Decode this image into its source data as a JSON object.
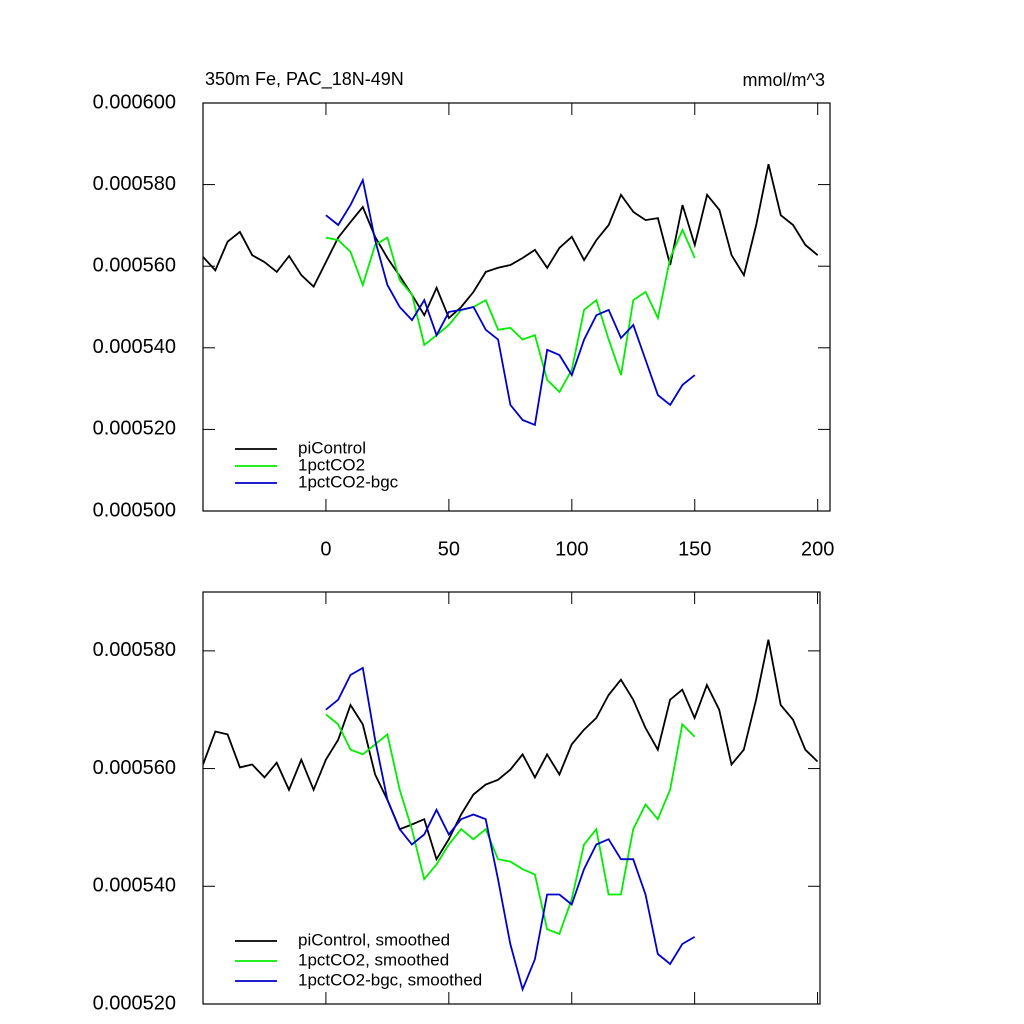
{
  "chart_data": [
    {
      "type": "line",
      "title": "350m Fe, PAC_18N-49N",
      "subtitle": "mmol/m^3",
      "x": [
        -50,
        -45,
        -40,
        -35,
        -30,
        -25,
        -20,
        -15,
        -10,
        -5,
        0,
        5,
        10,
        15,
        20,
        25,
        30,
        35,
        40,
        45,
        50,
        55,
        60,
        65,
        70,
        75,
        80,
        85,
        90,
        95,
        100,
        105,
        110,
        115,
        120,
        125,
        130,
        135,
        140,
        145,
        150,
        155,
        160,
        165,
        170,
        175,
        180,
        185,
        190,
        195,
        200
      ],
      "series": [
        {
          "name": "piControl",
          "color": "#000000",
          "values": [
            0.0005623,
            0.000559,
            0.000566,
            0.0005684,
            0.0005627,
            0.000561,
            0.0005586,
            0.0005625,
            0.0005578,
            0.000555,
            0.000561,
            0.000567,
            0.0005708,
            0.0005745,
            0.0005672,
            0.000562,
            0.0005576,
            0.000553,
            0.000548,
            0.0005547,
            0.0005473,
            0.00055,
            0.0005537,
            0.0005586,
            0.0005596,
            0.0005603,
            0.000562,
            0.000564,
            0.0005596,
            0.0005645,
            0.0005672,
            0.0005615,
            0.0005664,
            0.0005701,
            0.0005775,
            0.0005733,
            0.0005713,
            0.0005718,
            0.0005603,
            0.000575,
            0.0005652,
            0.0005775,
            0.0005738,
            0.0005627,
            0.0005578,
            0.0005701,
            0.000585,
            0.0005725,
            0.0005701,
            0.0005652,
            0.0005627
          ]
        },
        {
          "name": "1pctCO2",
          "color": "#00ee00",
          "values": [
            null,
            null,
            null,
            null,
            null,
            null,
            null,
            null,
            null,
            null,
            0.000567,
            0.0005664,
            0.0005635,
            0.0005554,
            0.0005652,
            0.000567,
            0.0005566,
            0.000553,
            0.0005407,
            0.0005431,
            0.0005456,
            0.0005493,
            0.00055,
            0.0005517,
            0.0005444,
            0.0005449,
            0.000542,
            0.0005431,
            0.0005321,
            0.0005292,
            0.0005346,
            0.0005493,
            0.0005517,
            0.000542,
            0.0005333,
            0.0005517,
            0.0005537,
            0.0005473,
            0.000562,
            0.0005689,
            0.000562,
            null,
            null,
            null,
            null,
            null,
            null,
            null,
            null,
            null,
            null
          ]
        },
        {
          "name": "1pctCO2-bgc",
          "color": "#0000cc",
          "values": [
            null,
            null,
            null,
            null,
            null,
            null,
            null,
            null,
            null,
            null,
            0.0005725,
            0.0005701,
            0.000575,
            0.0005811,
            0.0005664,
            0.0005554,
            0.00055,
            0.0005468,
            0.0005517,
            0.0005431,
            0.0005488,
            0.0005493,
            0.00055,
            0.0005444,
            0.000542,
            0.000526,
            0.0005223,
            0.0005211,
            0.0005395,
            0.0005382,
            0.0005333,
            0.000542,
            0.000548,
            0.0005493,
            0.0005424,
            0.0005456,
            0.000537,
            0.0005284,
            0.000526,
            0.0005309,
            0.0005333,
            null,
            null,
            null,
            null,
            null,
            null,
            null,
            null,
            null,
            null
          ]
        }
      ],
      "xlim": [
        -50,
        205
      ],
      "xticks": [
        0,
        50,
        100,
        150,
        200
      ],
      "ylim": [
        0.0005,
        0.0006
      ],
      "yticks": [
        {
          "value": 0.0005,
          "label": "0.000500"
        },
        {
          "value": 0.00052,
          "label": "0.000520"
        },
        {
          "value": 0.00054,
          "label": "0.000540"
        },
        {
          "value": 0.00056,
          "label": "0.000560"
        },
        {
          "value": 0.00058,
          "label": "0.000580"
        },
        {
          "value": 0.0006,
          "label": "0.000600"
        }
      ],
      "legend": "bottom-left",
      "xtick_labels": true
    },
    {
      "type": "line",
      "x": [
        -50,
        -45,
        -40,
        -35,
        -30,
        -25,
        -20,
        -15,
        -10,
        -5,
        0,
        5,
        10,
        15,
        20,
        25,
        30,
        35,
        40,
        45,
        50,
        55,
        60,
        65,
        70,
        75,
        80,
        85,
        90,
        95,
        100,
        105,
        110,
        115,
        120,
        125,
        130,
        135,
        140,
        145,
        150,
        155,
        160,
        165,
        170,
        175,
        180,
        185,
        190,
        195,
        200
      ],
      "series": [
        {
          "name": "piControl, smoothed",
          "color": "#000000",
          "values": [
            0.0005607,
            0.0005663,
            0.0005658,
            0.0005602,
            0.0005607,
            0.0005585,
            0.000561,
            0.0005564,
            0.0005615,
            0.0005564,
            0.0005615,
            0.0005649,
            0.0005708,
            0.0005675,
            0.000559,
            0.0005547,
            0.0005497,
            0.0005505,
            0.0005514,
            0.0005446,
            0.000548,
            0.0005522,
            0.0005556,
            0.0005573,
            0.0005581,
            0.0005598,
            0.0005624,
            0.0005585,
            0.0005624,
            0.000559,
            0.0005641,
            0.0005666,
            0.0005686,
            0.0005725,
            0.0005751,
            0.0005717,
            0.0005669,
            0.0005632,
            0.0005717,
            0.0005734,
            0.0005686,
            0.0005742,
            0.00057,
            0.0005607,
            0.0005632,
            0.0005717,
            0.0005819,
            0.0005708,
            0.0005683,
            0.0005632,
            0.0005612
          ]
        },
        {
          "name": "1pctCO2, smoothed",
          "color": "#00ee00",
          "values": [
            null,
            null,
            null,
            null,
            null,
            null,
            null,
            null,
            null,
            null,
            0.0005692,
            0.0005675,
            0.0005632,
            0.0005624,
            0.0005641,
            0.0005658,
            0.0005564,
            0.0005497,
            0.0005412,
            0.0005437,
            0.0005471,
            0.0005497,
            0.000548,
            0.0005497,
            0.0005446,
            0.0005442,
            0.0005429,
            0.000542,
            0.0005327,
            0.0005319,
            0.0005378,
            0.0005471,
            0.0005497,
            0.0005386,
            0.0005386,
            0.0005497,
            0.0005539,
            0.0005514,
            0.0005564,
            0.0005675,
            0.0005654,
            null,
            null,
            null,
            null,
            null,
            null,
            null,
            null,
            null,
            null
          ]
        },
        {
          "name": "1pctCO2-bgc, smoothed",
          "color": "#0000cc",
          "values": [
            null,
            null,
            null,
            null,
            null,
            null,
            null,
            null,
            null,
            null,
            0.00057,
            0.0005717,
            0.0005759,
            0.0005771,
            0.0005649,
            0.0005547,
            0.0005497,
            0.0005471,
            0.0005488,
            0.000553,
            0.0005488,
            0.0005514,
            0.0005522,
            0.0005514,
            0.0005412,
            0.0005302,
            0.0005225,
            0.0005276,
            0.0005386,
            0.0005386,
            0.0005369,
            0.0005429,
            0.0005471,
            0.000548,
            0.0005446,
            0.0005446,
            0.0005386,
            0.0005285,
            0.0005268,
            0.0005302,
            0.0005314,
            null,
            null,
            null,
            null,
            null,
            null,
            null,
            null,
            null,
            null
          ]
        }
      ],
      "xlim": [
        -50,
        201
      ],
      "xticks": [
        0,
        50,
        100,
        150,
        200
      ],
      "ylim": [
        0.00052,
        0.00059
      ],
      "yticks": [
        {
          "value": 0.00052,
          "label": "0.000520"
        },
        {
          "value": 0.00054,
          "label": "0.000540"
        },
        {
          "value": 0.00056,
          "label": "0.000560"
        },
        {
          "value": 0.00058,
          "label": "0.000580"
        }
      ],
      "legend": "bottom-left",
      "xtick_labels": false
    }
  ]
}
